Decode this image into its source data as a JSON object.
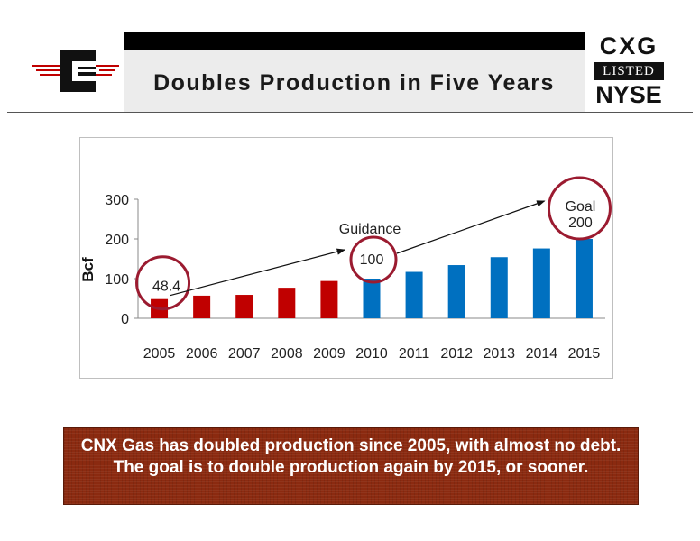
{
  "header": {
    "title": "Doubles Production in Five Years"
  },
  "badge": {
    "ticker": "CXG",
    "listed": "LISTED",
    "exchange": "NYSE"
  },
  "chart_data": {
    "type": "bar",
    "title": "",
    "xlabel": "",
    "ylabel": "Bcf",
    "categories": [
      "2005",
      "2006",
      "2007",
      "2008",
      "2009",
      "2010",
      "2011",
      "2012",
      "2013",
      "2014",
      "2015"
    ],
    "values": [
      48.4,
      57,
      59,
      77,
      94,
      100,
      117,
      134,
      154,
      176,
      200
    ],
    "bar_colors": [
      "#c00000",
      "#c00000",
      "#c00000",
      "#c00000",
      "#c00000",
      "#0070c0",
      "#0070c0",
      "#0070c0",
      "#0070c0",
      "#0070c0",
      "#0070c0"
    ],
    "ylim": [
      0,
      300
    ],
    "yticks": [
      0,
      100,
      200,
      300
    ],
    "grid": false,
    "annotations": {
      "start_value": "48.4",
      "guidance_label": "Guidance",
      "guidance_value": "100",
      "goal_label": "Goal",
      "goal_value": "200"
    },
    "highlight_color": "#9b1b30"
  },
  "caption": {
    "text": "CNX Gas has doubled production since 2005, with almost no debt. The goal is to double production again by 2015, or sooner."
  }
}
